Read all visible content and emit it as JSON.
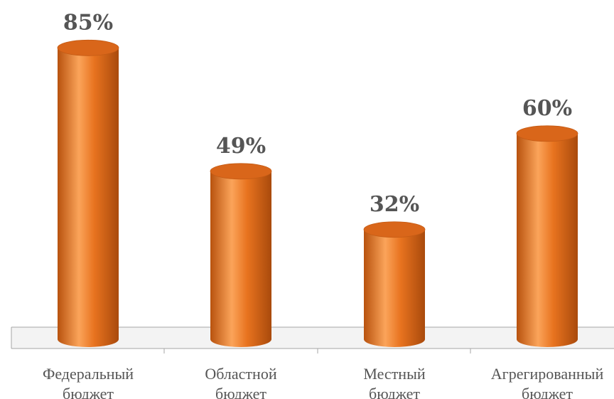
{
  "chart_data": {
    "type": "bar",
    "style": "3d-cylinder",
    "categories": [
      [
        "Федеральный",
        "бюджет"
      ],
      [
        "Областной",
        "бюджет"
      ],
      [
        "Местный",
        "бюджет"
      ],
      [
        "Агрегированный",
        "бюджет"
      ]
    ],
    "values": [
      85,
      49,
      32,
      60
    ],
    "data_labels": [
      "85%",
      "49%",
      "32%",
      "60%"
    ],
    "unit": "%",
    "ylim": [
      0,
      100
    ],
    "grid": false,
    "legend": "none",
    "colors": {
      "bar": "#E8731F",
      "bar_dark": "#B8520E",
      "bar_light": "#FBA45A",
      "bar_top": "#D9661A",
      "floor": "#F3F3F3",
      "axis": "#A6A6A6",
      "text": "#555555"
    }
  }
}
